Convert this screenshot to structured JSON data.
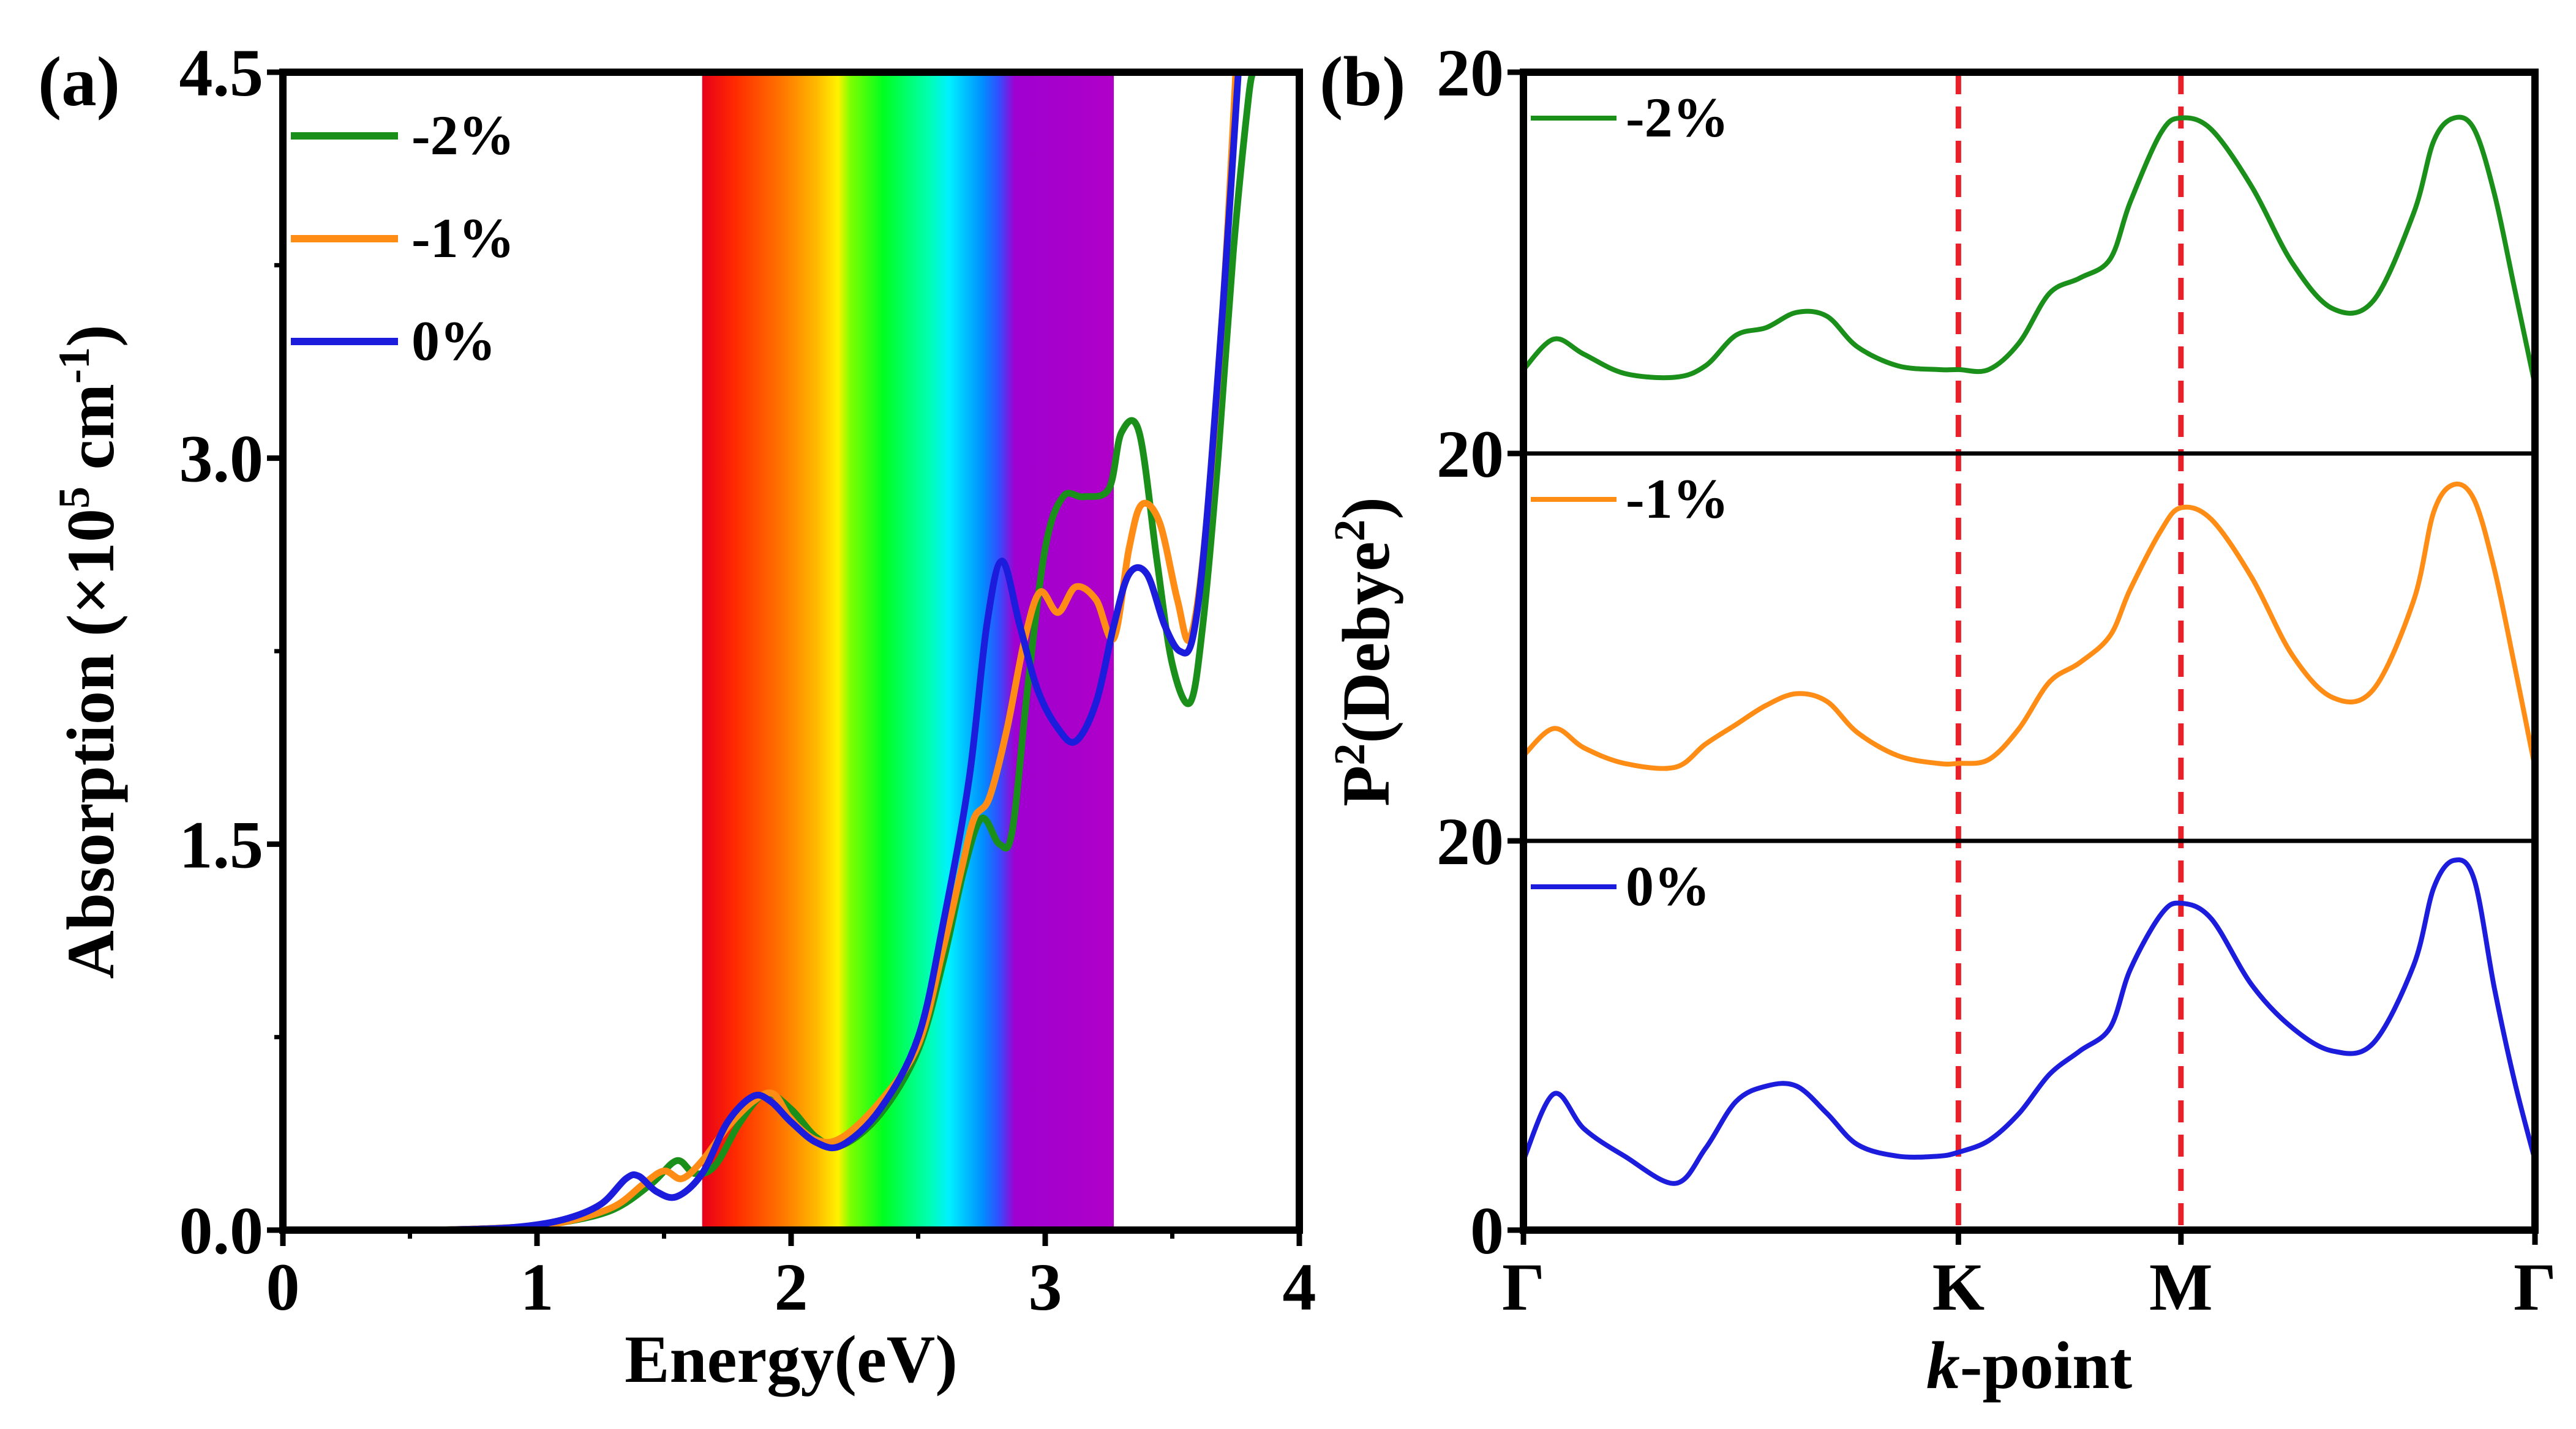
{
  "chart_data": [
    {
      "type": "line",
      "panel_label": "(a)",
      "xlabel": "Energy(eV)",
      "ylabel": {
        "prefix": "Absorption (×10",
        "sup1": "5",
        "mid": " cm",
        "sup2": "-1",
        "suffix": ")"
      },
      "xlim": [
        0,
        4
      ],
      "ylim": [
        0,
        4.5
      ],
      "xticks": [
        0,
        1,
        2,
        3,
        4
      ],
      "xtick_labels": [
        "0",
        "1",
        "2",
        "3",
        "4"
      ],
      "yticks": [
        0,
        1.5,
        3.0,
        4.5
      ],
      "ytick_labels": [
        "0.0",
        "1.5",
        "3.0",
        "4.5"
      ],
      "visible_spectrum_band_ev": [
        1.65,
        3.27
      ],
      "legend": {
        "position": "top-left"
      },
      "series": [
        {
          "name": "-2%",
          "color": "#1a8f1a",
          "x": [
            0.6,
            0.9,
            1.1,
            1.3,
            1.45,
            1.55,
            1.62,
            1.7,
            1.8,
            1.9,
            2.0,
            2.1,
            2.2,
            2.35,
            2.5,
            2.6,
            2.68,
            2.75,
            2.82,
            2.87,
            2.93,
            3.0,
            3.07,
            3.15,
            3.25,
            3.3,
            3.37,
            3.44,
            3.5,
            3.57,
            3.62,
            3.68,
            3.74,
            3.8,
            3.82
          ],
          "values": [
            0,
            0.01,
            0.03,
            0.08,
            0.18,
            0.27,
            0.22,
            0.25,
            0.42,
            0.53,
            0.47,
            0.36,
            0.33,
            0.45,
            0.7,
            1.05,
            1.4,
            1.6,
            1.5,
            1.55,
            2.1,
            2.65,
            2.85,
            2.85,
            2.88,
            3.1,
            3.1,
            2.6,
            2.2,
            2.05,
            2.35,
            3.0,
            3.8,
            4.4,
            4.5
          ]
        },
        {
          "name": "-1%",
          "color": "#ff8c14",
          "x": [
            0.6,
            0.9,
            1.1,
            1.3,
            1.42,
            1.5,
            1.57,
            1.65,
            1.75,
            1.85,
            1.93,
            2.0,
            2.1,
            2.2,
            2.35,
            2.5,
            2.6,
            2.67,
            2.72,
            2.78,
            2.85,
            2.92,
            2.98,
            3.05,
            3.12,
            3.2,
            3.27,
            3.33,
            3.38,
            3.45,
            3.52,
            3.57,
            3.63,
            3.7,
            3.75
          ],
          "values": [
            0,
            0.01,
            0.03,
            0.09,
            0.18,
            0.23,
            0.2,
            0.27,
            0.4,
            0.5,
            0.53,
            0.43,
            0.35,
            0.36,
            0.5,
            0.72,
            1.1,
            1.4,
            1.6,
            1.68,
            1.95,
            2.3,
            2.48,
            2.4,
            2.5,
            2.45,
            2.3,
            2.65,
            2.82,
            2.75,
            2.45,
            2.3,
            2.7,
            3.6,
            4.5
          ]
        },
        {
          "name": "0%",
          "color": "#1c1cdc",
          "x": [
            0.6,
            0.9,
            1.1,
            1.25,
            1.35,
            1.4,
            1.47,
            1.55,
            1.65,
            1.75,
            1.85,
            1.92,
            2.0,
            2.1,
            2.2,
            2.35,
            2.5,
            2.6,
            2.7,
            2.77,
            2.83,
            2.9,
            2.97,
            3.05,
            3.12,
            3.2,
            3.27,
            3.33,
            3.4,
            3.47,
            3.53,
            3.58,
            3.63,
            3.7,
            3.76
          ],
          "values": [
            0,
            0.01,
            0.04,
            0.1,
            0.2,
            0.21,
            0.15,
            0.13,
            0.22,
            0.42,
            0.52,
            0.5,
            0.42,
            0.34,
            0.33,
            0.47,
            0.75,
            1.2,
            1.75,
            2.35,
            2.6,
            2.35,
            2.1,
            1.95,
            1.9,
            2.05,
            2.35,
            2.55,
            2.55,
            2.35,
            2.25,
            2.3,
            2.7,
            3.6,
            4.5
          ]
        }
      ]
    },
    {
      "type": "line",
      "panel_label": "(b)",
      "xlabel": {
        "italic": "k",
        "rest": "-point"
      },
      "ylabel": {
        "prefix": "P",
        "sup1": "2",
        "mid": "(Debye",
        "sup2": "2",
        "suffix": ")"
      },
      "xticks": [
        0,
        0.43,
        0.65,
        1.0
      ],
      "xtick_labels": [
        "Γ",
        "K",
        "M",
        "Γ"
      ],
      "vlines": [
        0.43,
        0.65
      ],
      "vline_color": "#e8202a",
      "ytick_labels": [
        "20",
        "20",
        "20",
        "0"
      ],
      "subplots": [
        {
          "name": "-2%",
          "color": "#1a8f1a",
          "x": [
            0,
            0.03,
            0.06,
            0.1,
            0.15,
            0.18,
            0.21,
            0.24,
            0.27,
            0.3,
            0.33,
            0.37,
            0.41,
            0.43,
            0.46,
            0.49,
            0.52,
            0.55,
            0.58,
            0.6,
            0.63,
            0.65,
            0.68,
            0.72,
            0.76,
            0.8,
            0.84,
            0.88,
            0.9,
            0.92,
            0.94,
            0.96,
            0.98,
            1.0
          ],
          "values": [
            0.22,
            0.3,
            0.26,
            0.21,
            0.2,
            0.23,
            0.31,
            0.33,
            0.37,
            0.36,
            0.28,
            0.23,
            0.22,
            0.22,
            0.22,
            0.29,
            0.42,
            0.46,
            0.51,
            0.66,
            0.84,
            0.88,
            0.85,
            0.7,
            0.5,
            0.38,
            0.4,
            0.63,
            0.82,
            0.88,
            0.85,
            0.68,
            0.43,
            0.18
          ]
        },
        {
          "name": "-1%",
          "color": "#ff8c14",
          "x": [
            0,
            0.03,
            0.06,
            0.1,
            0.15,
            0.18,
            0.21,
            0.24,
            0.27,
            0.3,
            0.33,
            0.37,
            0.41,
            0.43,
            0.46,
            0.49,
            0.52,
            0.55,
            0.58,
            0.6,
            0.63,
            0.65,
            0.68,
            0.72,
            0.76,
            0.8,
            0.84,
            0.88,
            0.9,
            0.92,
            0.94,
            0.96,
            0.98,
            1.0
          ],
          "values": [
            0.22,
            0.29,
            0.24,
            0.2,
            0.19,
            0.25,
            0.3,
            0.35,
            0.38,
            0.36,
            0.28,
            0.22,
            0.2,
            0.2,
            0.21,
            0.29,
            0.41,
            0.46,
            0.53,
            0.65,
            0.8,
            0.86,
            0.83,
            0.68,
            0.48,
            0.37,
            0.39,
            0.62,
            0.85,
            0.92,
            0.88,
            0.7,
            0.45,
            0.19
          ]
        },
        {
          "name": "0%",
          "color": "#1c1cdc",
          "x": [
            0,
            0.03,
            0.06,
            0.1,
            0.15,
            0.18,
            0.21,
            0.24,
            0.27,
            0.3,
            0.33,
            0.37,
            0.41,
            0.43,
            0.46,
            0.49,
            0.52,
            0.55,
            0.58,
            0.6,
            0.63,
            0.65,
            0.68,
            0.72,
            0.76,
            0.8,
            0.84,
            0.88,
            0.9,
            0.92,
            0.94,
            0.96,
            0.98,
            1.0
          ],
          "values": [
            0.18,
            0.35,
            0.26,
            0.19,
            0.12,
            0.21,
            0.33,
            0.37,
            0.37,
            0.3,
            0.22,
            0.19,
            0.19,
            0.2,
            0.23,
            0.3,
            0.4,
            0.46,
            0.52,
            0.67,
            0.81,
            0.84,
            0.8,
            0.63,
            0.52,
            0.46,
            0.48,
            0.68,
            0.88,
            0.95,
            0.9,
            0.62,
            0.38,
            0.18
          ]
        }
      ]
    }
  ]
}
